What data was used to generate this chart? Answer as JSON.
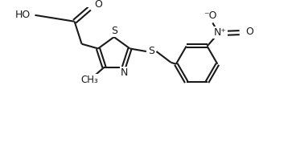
{
  "bg_color": "#ffffff",
  "line_color": "#1a1a1a",
  "bond_lw": 1.5,
  "font_size": 9,
  "figsize": [
    3.68,
    1.88
  ],
  "dpi": 100,
  "xlim": [
    0,
    9.2
  ],
  "ylim": [
    0,
    5.0
  ]
}
